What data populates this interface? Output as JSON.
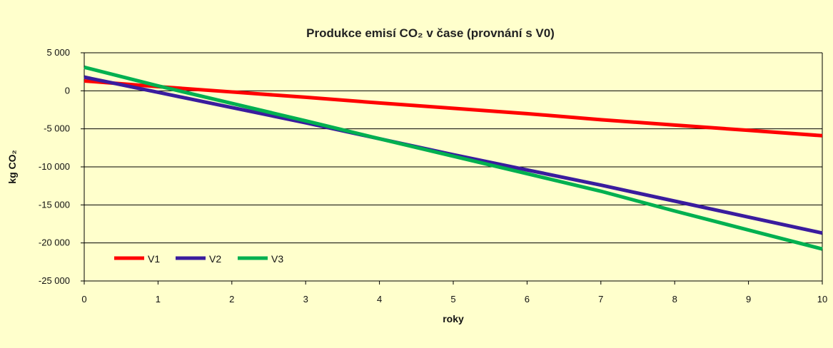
{
  "chart_data": {
    "type": "line",
    "title": "Produkce emisí CO₂ v čase  (provnání s V0)",
    "xlabel": "roky",
    "ylabel": "kg  CO₂",
    "xlim": [
      0,
      10
    ],
    "ylim": [
      -25000,
      5000
    ],
    "x_ticks": [
      0,
      1,
      2,
      3,
      4,
      5,
      6,
      7,
      8,
      9,
      10
    ],
    "y_ticks": [
      5000,
      0,
      -5000,
      -10000,
      -15000,
      -20000,
      -25000
    ],
    "y_tick_labels": [
      "5 000",
      "0",
      "-5 000",
      "-10 000",
      "-15 000",
      "-20 000",
      "-25 000"
    ],
    "grid": "horizontal",
    "legend_position": "bottom-left",
    "x": [
      0,
      1,
      2,
      3,
      4,
      5,
      6,
      7,
      8,
      9,
      10
    ],
    "series": [
      {
        "name": "V1",
        "color": "#ff0000",
        "values": [
          1300,
          550,
          -150,
          -850,
          -1600,
          -2300,
          -3000,
          -3800,
          -4500,
          -5200,
          -5900
        ]
      },
      {
        "name": "V2",
        "color": "#3a1c9e",
        "values": [
          1800,
          -200,
          -2200,
          -4200,
          -6300,
          -8400,
          -10400,
          -12400,
          -14500,
          -16600,
          -18700
        ]
      },
      {
        "name": "V3",
        "color": "#00b050",
        "values": [
          3100,
          650,
          -1650,
          -3950,
          -6300,
          -8600,
          -10900,
          -13200,
          -15800,
          -18300,
          -20800
        ]
      }
    ]
  }
}
